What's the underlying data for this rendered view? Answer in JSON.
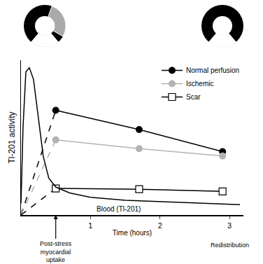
{
  "chart_data": {
    "type": "line",
    "x_label": "Time (hours)",
    "y_label": "Tl-201 activity",
    "xlim": [
      0,
      3.2
    ],
    "xticks": [
      1,
      2,
      3
    ],
    "ylim": [
      0,
      105
    ],
    "tick_labels": "x",
    "legend": "top right",
    "series": [
      {
        "name": "Normal perfusion",
        "color": "#000000",
        "marker": "circle",
        "x": [
          0,
          0.5,
          1.7,
          2.9
        ],
        "values": [
          0,
          71,
          58,
          43
        ]
      },
      {
        "name": "Ischemic",
        "color": "#b3b3b3",
        "marker": "circle",
        "x": [
          0,
          0.5,
          1.7,
          2.9
        ],
        "values": [
          0,
          51,
          45,
          40
        ]
      },
      {
        "name": "Scar",
        "color": "#000000",
        "marker": "square-open",
        "x": [
          0,
          0.5,
          1.7,
          2.9
        ],
        "values": [
          0,
          18,
          17.5,
          16
        ]
      },
      {
        "color": "#000000",
        "marker": "none",
        "x": [
          0,
          0.03,
          0.07,
          0.12,
          0.18,
          0.25,
          0.32,
          0.4,
          0.5,
          0.7,
          1,
          1.5,
          2,
          2.5,
          3.15
        ],
        "values": [
          8,
          60,
          97,
          100,
          92,
          66,
          40,
          25,
          19,
          15,
          12,
          10,
          9,
          8,
          7
        ]
      }
    ],
    "annotations": [
      {
        "text": "Blood (Tl-201)",
        "x": 1.4,
        "y": 4
      },
      {
        "text": "Post-stress\nmyocardial\nuptake",
        "x": 0.5,
        "arrow": true
      },
      {
        "text": "Redistribution",
        "x": 3
      }
    ]
  }
}
